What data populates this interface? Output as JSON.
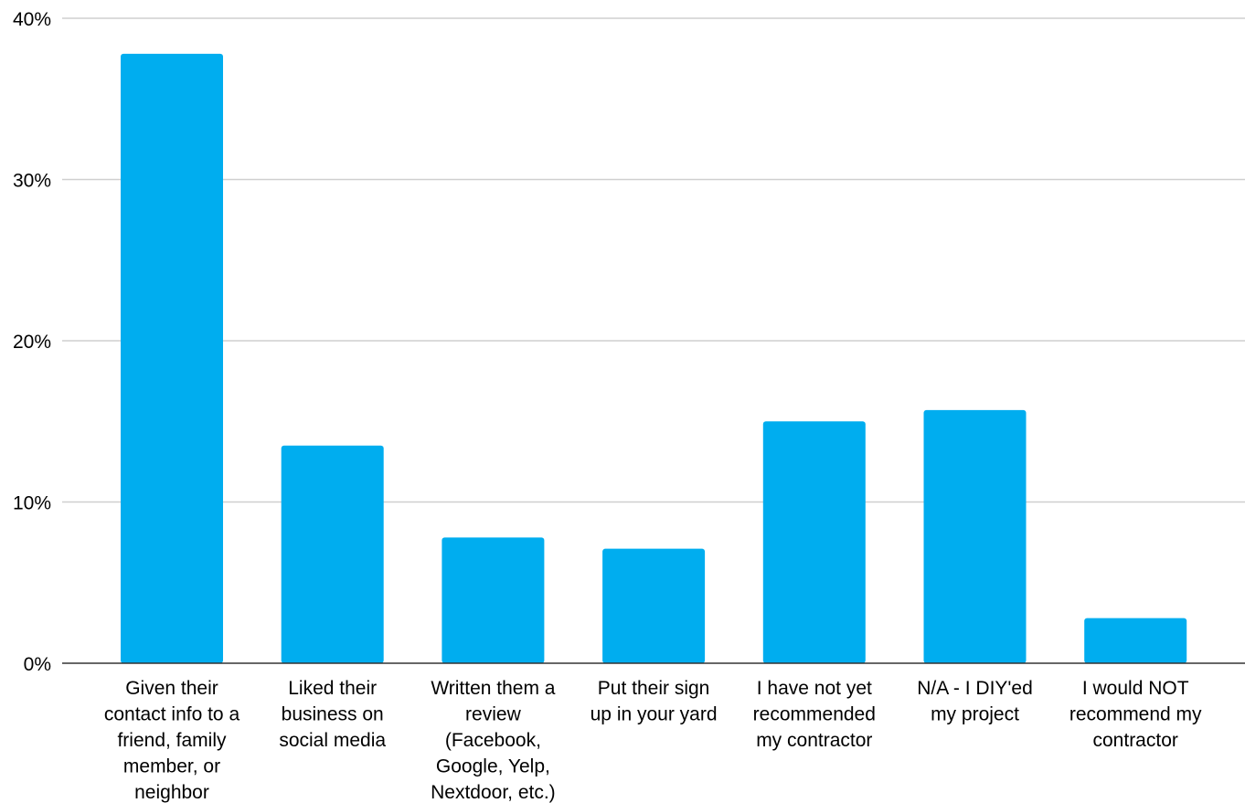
{
  "chart_data": {
    "type": "bar",
    "title": "",
    "xlabel": "",
    "ylabel": "",
    "ylim": [
      0,
      40
    ],
    "yticks": [
      {
        "value": 0,
        "label": "0%"
      },
      {
        "value": 10,
        "label": "10%"
      },
      {
        "value": 20,
        "label": "20%"
      },
      {
        "value": 30,
        "label": "30%"
      },
      {
        "value": 40,
        "label": "40%"
      }
    ],
    "grid": true,
    "legend": "none",
    "bar_color": "#00adef",
    "categories": [
      "Given their contact info to a friend, family member, or neighbor",
      "Liked their business on social media",
      "Written them a review (Facebook, Google, Yelp, Nextdoor, etc.)",
      "Put their sign up in your yard",
      "I have not yet recommended my contractor",
      "N/A - I DIY'ed my project",
      "I would NOT recommend my contractor"
    ],
    "category_lines": [
      [
        "Given their",
        "contact info to a",
        "friend, family",
        "member, or",
        "neighbor"
      ],
      [
        "Liked their",
        "business on",
        "social media"
      ],
      [
        "Written them a",
        "review",
        "(Facebook,",
        "Google, Yelp,",
        "Nextdoor, etc.)"
      ],
      [
        "Put their sign",
        "up in your yard"
      ],
      [
        "I have not yet",
        "recommended",
        "my contractor"
      ],
      [
        "N/A - I DIY'ed",
        "my project"
      ],
      [
        "I would NOT",
        "recommend my",
        "contractor"
      ]
    ],
    "values": [
      37.8,
      13.5,
      7.8,
      7.1,
      15.0,
      15.7,
      2.8
    ]
  }
}
